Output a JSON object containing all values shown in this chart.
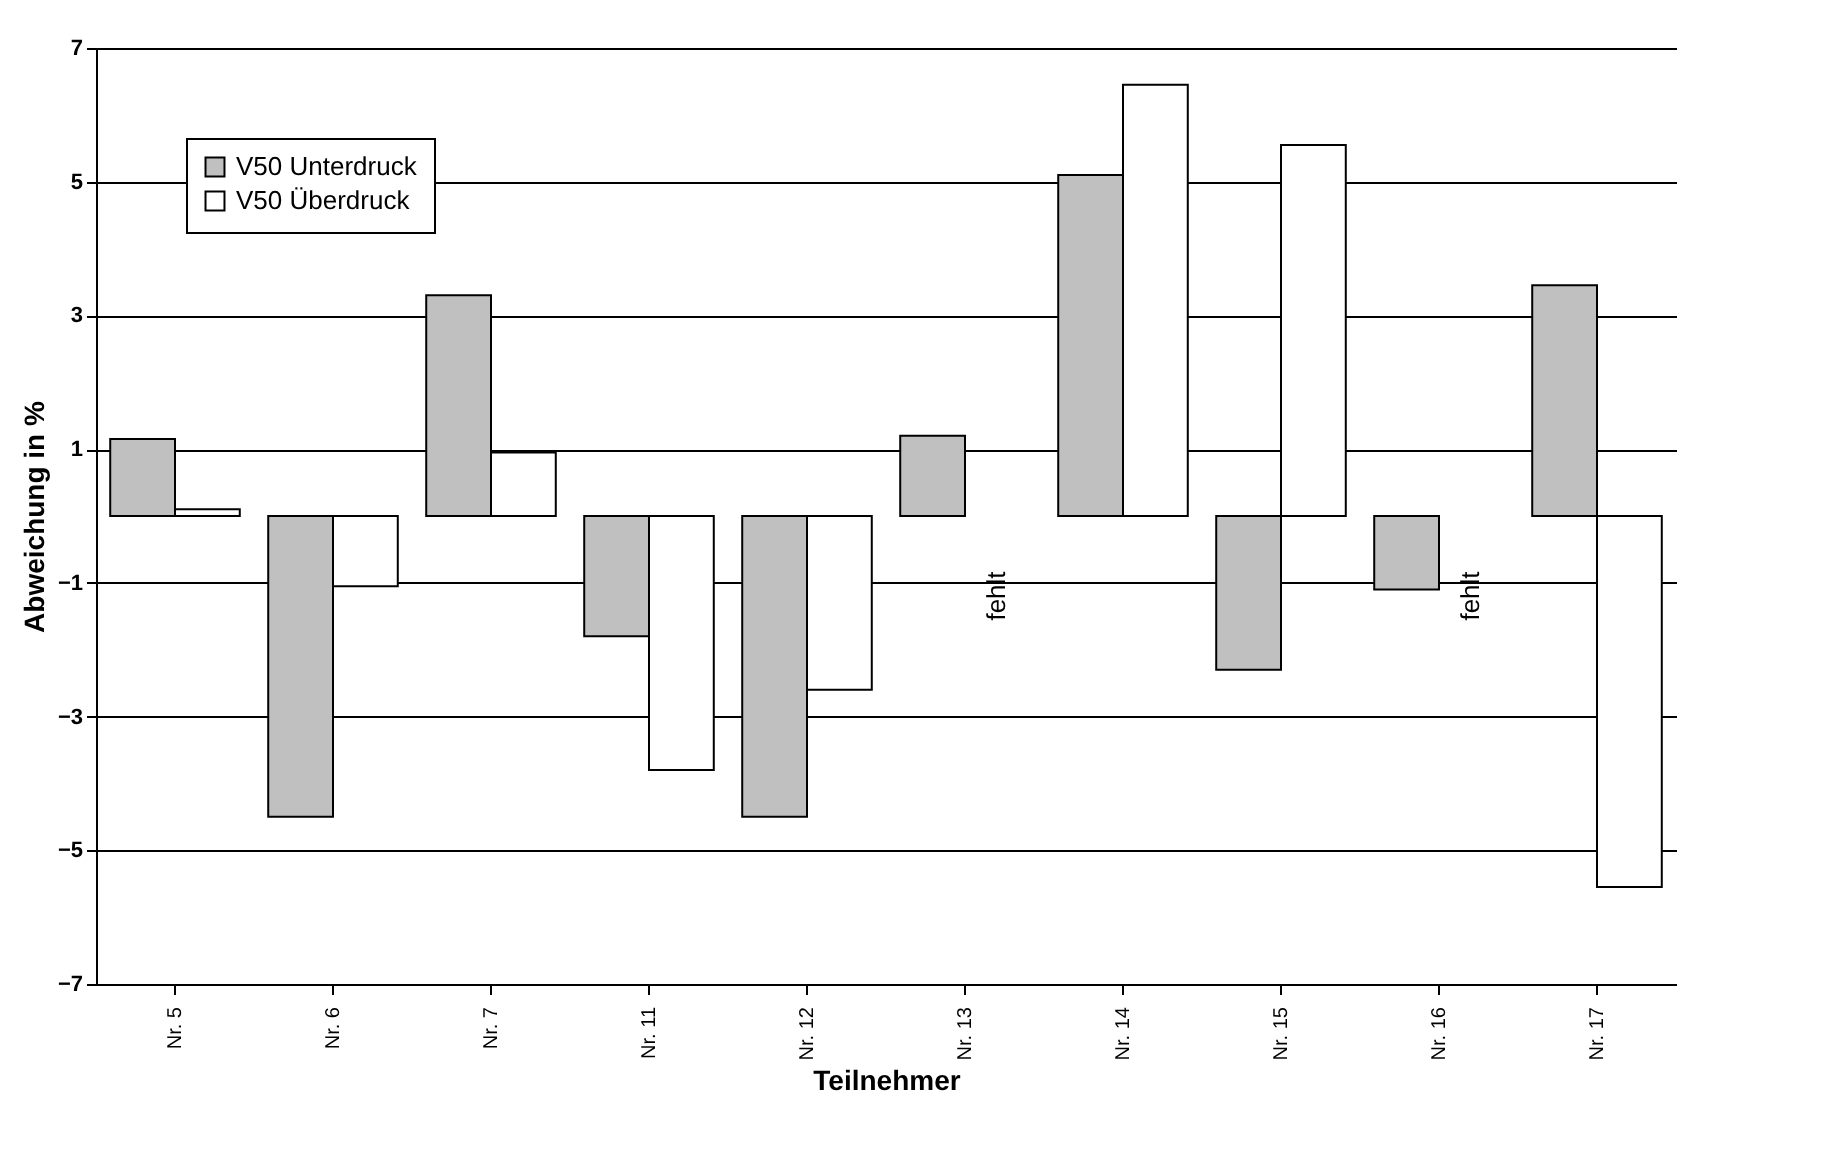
{
  "chart_data": {
    "type": "bar",
    "ylabel": "Abweichung in %",
    "xlabel": "Teilnehmer",
    "categories": [
      "Nr. 5",
      "Nr. 6",
      "Nr. 7",
      "Nr. 11",
      "Nr. 12",
      "Nr. 13",
      "Nr. 14",
      "Nr. 15",
      "Nr. 16",
      "Nr. 17"
    ],
    "series": [
      {
        "name": "V50 Unterdruck",
        "color": "#c0c0c0",
        "values": [
          1.15,
          -4.5,
          3.3,
          -1.8,
          -4.5,
          1.2,
          5.1,
          -2.3,
          -1.1,
          3.45
        ]
      },
      {
        "name": "V50 Überdruck",
        "color": "#ffffff",
        "values": [
          0.1,
          -1.05,
          0.95,
          -3.8,
          -2.6,
          null,
          6.45,
          5.55,
          null,
          -5.55
        ]
      }
    ],
    "ylim": [
      -7,
      7
    ],
    "yticks": [
      -7,
      -5,
      -3,
      -1,
      1,
      3,
      5,
      7
    ],
    "grid": "y",
    "legend": "top left",
    "annotations": [
      "fehlt",
      "fehlt"
    ]
  }
}
